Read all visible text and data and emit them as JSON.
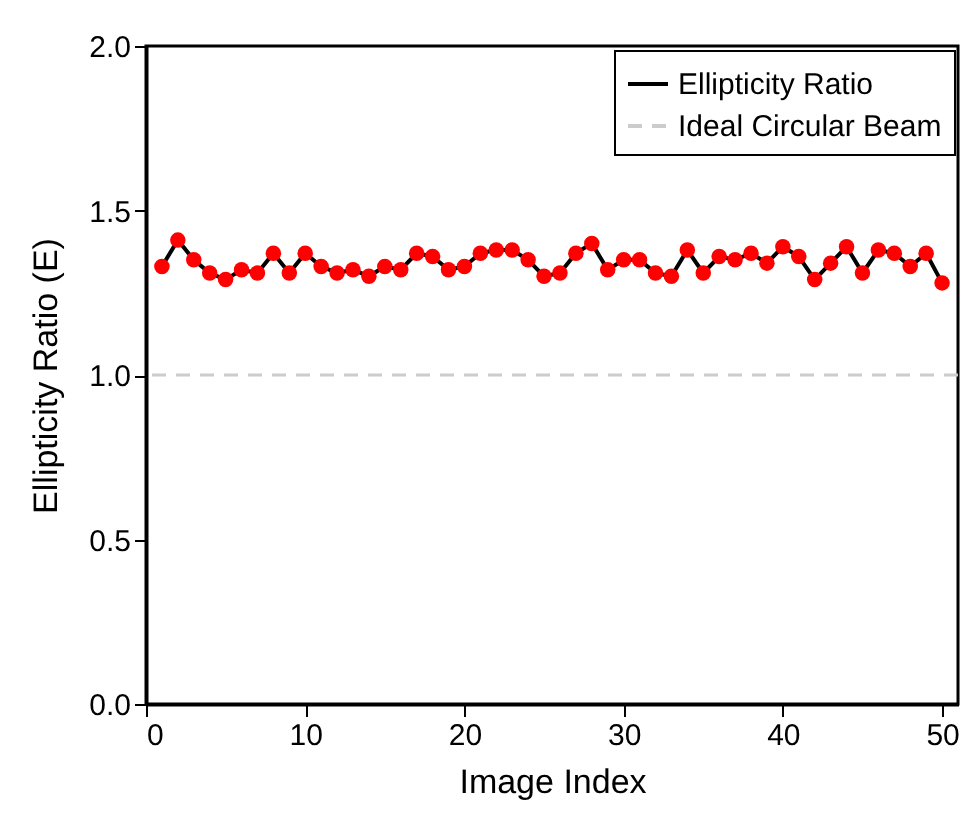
{
  "chart_data": {
    "type": "line",
    "xlabel": "Image Index",
    "ylabel": "Ellipticity Ratio (E)",
    "x": [
      1,
      2,
      3,
      4,
      5,
      6,
      7,
      8,
      9,
      10,
      11,
      12,
      13,
      14,
      15,
      16,
      17,
      18,
      19,
      20,
      21,
      22,
      23,
      24,
      25,
      26,
      27,
      28,
      29,
      30,
      31,
      32,
      33,
      34,
      35,
      36,
      37,
      38,
      39,
      40,
      41,
      42,
      43,
      44,
      45,
      46,
      47,
      48,
      49,
      50
    ],
    "series": [
      {
        "name": "Ellipticity Ratio",
        "color": "#000000",
        "values": [
          1.33,
          1.41,
          1.35,
          1.31,
          1.29,
          1.32,
          1.31,
          1.37,
          1.31,
          1.37,
          1.33,
          1.31,
          1.32,
          1.3,
          1.33,
          1.32,
          1.37,
          1.36,
          1.32,
          1.33,
          1.37,
          1.38,
          1.38,
          1.35,
          1.3,
          1.31,
          1.37,
          1.4,
          1.32,
          1.35,
          1.35,
          1.31,
          1.3,
          1.38,
          1.31,
          1.36,
          1.35,
          1.37,
          1.34,
          1.39,
          1.36,
          1.29,
          1.34,
          1.39,
          1.31,
          1.38,
          1.37,
          1.33,
          1.37,
          1.28
        ]
      }
    ],
    "ref_lines": [
      {
        "axis": "y",
        "value": 1.0,
        "label": "Ideal Circular Beam",
        "color": "#cccccc",
        "line_style": "dashed"
      }
    ],
    "xlim": [
      0,
      51
    ],
    "xticks": [
      0,
      10,
      20,
      30,
      40,
      50
    ],
    "ylim": [
      0,
      2
    ],
    "yticks": [
      {
        "value": 0,
        "label": "0.0"
      },
      0.5,
      {
        "value": 1,
        "label": "1.0"
      },
      1.5,
      {
        "value": 2,
        "label": "2.0"
      }
    ],
    "grid": false,
    "legend": "top right",
    "marker": "circle",
    "line_style": "solid"
  }
}
